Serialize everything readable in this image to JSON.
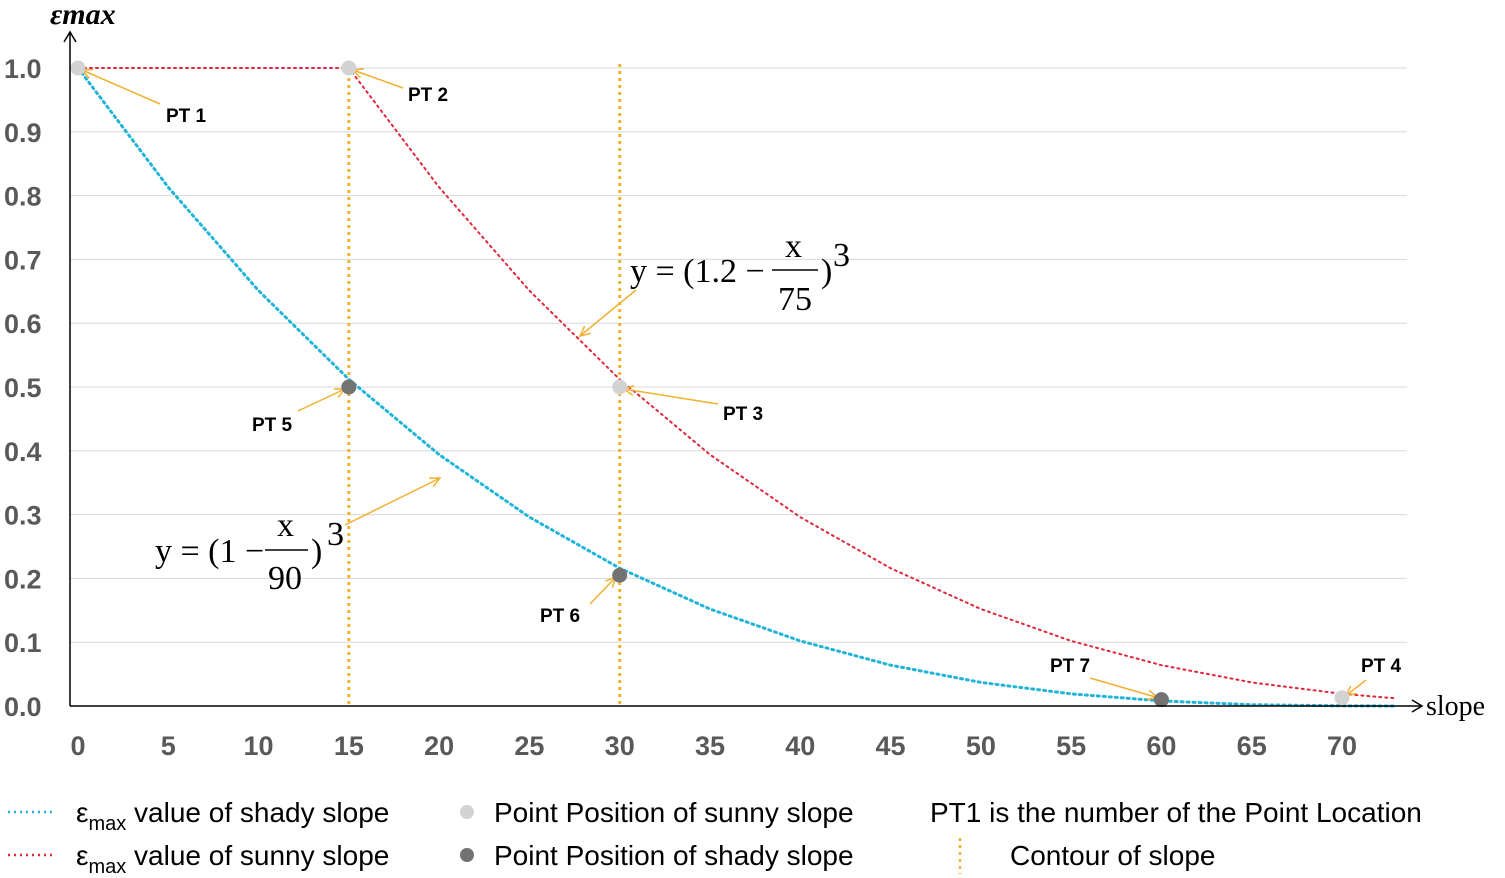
{
  "chart_data": {
    "type": "line",
    "ylabel": "εmax",
    "xlabel": "slope",
    "xlim": [
      0,
      73
    ],
    "ylim": [
      0,
      1.0
    ],
    "x_ticks": [
      "0",
      "5",
      "10",
      "15",
      "20",
      "25",
      "30",
      "35",
      "40",
      "45",
      "50",
      "55",
      "60",
      "65",
      "70"
    ],
    "y_ticks": [
      "0.0",
      "0.1",
      "0.2",
      "0.3",
      "0.4",
      "0.5",
      "0.6",
      "0.7",
      "0.8",
      "0.9",
      "1.0"
    ],
    "grid": "horizontal",
    "colors": {
      "shady": "#1fb4d8",
      "sunny": "#e0283c",
      "contour": "#f0b030",
      "sunny_point": "#d3d3d3",
      "shady_point": "#737373",
      "annotation": "#f0b030",
      "grid": "#d9d9d9"
    },
    "series": [
      {
        "name": "εmax value of shady slope",
        "style": "dotted",
        "x": [
          0,
          5,
          10,
          15,
          20,
          25,
          30,
          35,
          40,
          45,
          50,
          55,
          60,
          65,
          70,
          73
        ],
        "y": [
          1,
          0.813,
          0.651,
          0.512,
          0.394,
          0.296,
          0.216,
          0.152,
          0.102,
          0.064,
          0.037,
          0.019,
          0.008,
          0.002,
          0.0003,
          0.0
        ]
      },
      {
        "name": "εmax value of sunny slope",
        "style": "dotted",
        "x": [
          0,
          15,
          20,
          25,
          30,
          35,
          40,
          45,
          50,
          55,
          60,
          65,
          70,
          73
        ],
        "y": [
          1,
          1,
          0.813,
          0.651,
          0.512,
          0.394,
          0.296,
          0.216,
          0.152,
          0.102,
          0.064,
          0.037,
          0.019,
          0.012
        ]
      }
    ],
    "contours": [
      15,
      30
    ],
    "points": [
      {
        "label": "PT 1",
        "type": "sunny",
        "x": 0,
        "y": 1.0
      },
      {
        "label": "PT 2",
        "type": "sunny",
        "x": 15,
        "y": 1.0
      },
      {
        "label": "PT 3",
        "type": "sunny",
        "x": 30,
        "y": 0.5
      },
      {
        "label": "PT 4",
        "type": "sunny",
        "x": 70,
        "y": 0.013
      },
      {
        "label": "PT 5",
        "type": "shady",
        "x": 15,
        "y": 0.5
      },
      {
        "label": "PT 6",
        "type": "shady",
        "x": 30,
        "y": 0.205
      },
      {
        "label": "PT 7",
        "type": "shady",
        "x": 60,
        "y": 0.01
      }
    ],
    "equations": {
      "sunny": {
        "lhs": "y = (1.2 −",
        "num": "x",
        "den": "75",
        "rhs": ")",
        "exp": "3"
      },
      "shady": {
        "lhs": "y = (1 −",
        "num": "x",
        "den": "90",
        "rhs": ")",
        "exp": "3"
      }
    },
    "legend": {
      "shady_line": {
        "sym": "ε",
        "sub": "max",
        "text": " value of shady slope"
      },
      "sunny_line": {
        "sym": "ε",
        "sub": "max",
        "text": " value of sunny slope"
      },
      "sunny_point": "Point Position of sunny slope",
      "shady_point": "Point Position of shady slope",
      "note": "PT1 is the number of the Point Location",
      "contour": "Contour of slope"
    }
  }
}
